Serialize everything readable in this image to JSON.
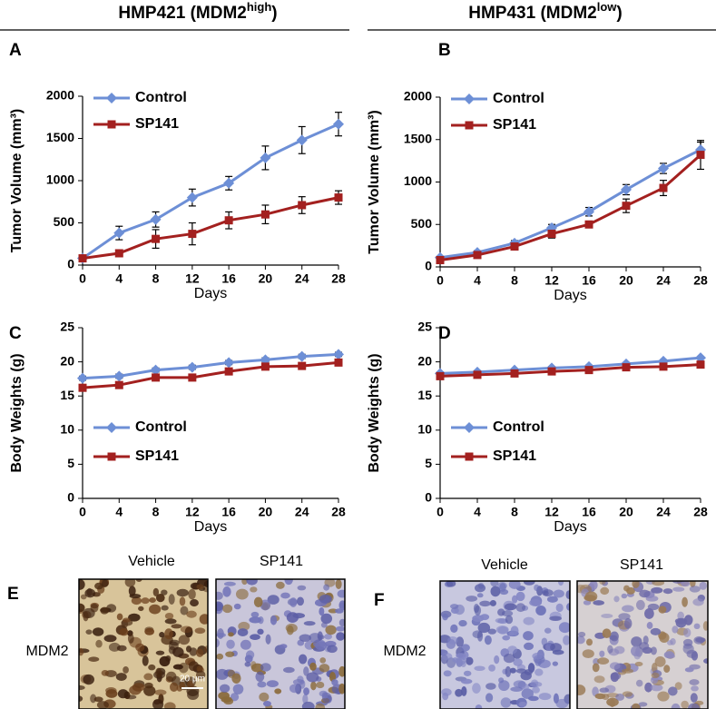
{
  "headers": [
    {
      "text": "HMP421 (MDM2",
      "sup": "high",
      "end": ")"
    },
    {
      "text": "HMP431 (MDM2",
      "sup": "low",
      "end": ")"
    }
  ],
  "chart_data": [
    {
      "type": "line",
      "panel": "A",
      "xlabel": "Days",
      "ylabel": "Tumor Volume (mm³)",
      "x": [
        0,
        4,
        8,
        12,
        16,
        20,
        24,
        28
      ],
      "xlim": [
        0,
        28
      ],
      "xticks": [
        0,
        4,
        8,
        12,
        16,
        20,
        24,
        28
      ],
      "ylim": [
        0,
        2000
      ],
      "yticks": [
        0,
        500,
        1000,
        1500,
        2000
      ],
      "legend_position": "upper left",
      "series": [
        {
          "name": "Control",
          "color": "#6d8fd6",
          "marker": "diamond",
          "values": [
            80,
            380,
            540,
            800,
            970,
            1270,
            1480,
            1670
          ],
          "errors": [
            0,
            80,
            90,
            100,
            80,
            140,
            160,
            140
          ]
        },
        {
          "name": "SP141",
          "color": "#a3201f",
          "marker": "square",
          "values": [
            80,
            140,
            310,
            370,
            530,
            600,
            710,
            800
          ],
          "errors": [
            0,
            40,
            110,
            130,
            100,
            110,
            100,
            80
          ]
        }
      ]
    },
    {
      "type": "line",
      "panel": "B",
      "xlabel": "Days",
      "ylabel": "Tumor Volume (mm³)",
      "x": [
        0,
        4,
        8,
        12,
        16,
        20,
        24,
        28
      ],
      "xlim": [
        0,
        28
      ],
      "xticks": [
        0,
        4,
        8,
        12,
        16,
        20,
        24,
        28
      ],
      "ylim": [
        0,
        2000
      ],
      "yticks": [
        0,
        500,
        1000,
        1500,
        2000
      ],
      "legend_position": "upper left",
      "series": [
        {
          "name": "Control",
          "color": "#6d8fd6",
          "marker": "diamond",
          "values": [
            110,
            170,
            280,
            460,
            650,
            910,
            1160,
            1380
          ],
          "errors": [
            0,
            20,
            30,
            40,
            50,
            60,
            60,
            90
          ]
        },
        {
          "name": "SP141",
          "color": "#a3201f",
          "marker": "square",
          "values": [
            80,
            140,
            240,
            390,
            500,
            720,
            930,
            1320
          ],
          "errors": [
            0,
            20,
            40,
            50,
            30,
            80,
            90,
            170
          ]
        }
      ]
    },
    {
      "type": "line",
      "panel": "C",
      "xlabel": "Days",
      "ylabel": "Body Weights (g)",
      "x": [
        0,
        4,
        8,
        12,
        16,
        20,
        24,
        28
      ],
      "xlim": [
        0,
        28
      ],
      "xticks": [
        0,
        4,
        8,
        12,
        16,
        20,
        24,
        28
      ],
      "ylim": [
        0,
        25
      ],
      "yticks": [
        0,
        5,
        10,
        15,
        20,
        25
      ],
      "legend_position": "lower left",
      "series": [
        {
          "name": "Control",
          "color": "#6d8fd6",
          "marker": "diamond",
          "values": [
            17.6,
            17.9,
            18.8,
            19.2,
            19.9,
            20.3,
            20.8,
            21.1
          ],
          "errors": [
            0.3,
            0.3,
            0.3,
            0.3,
            0.3,
            0.3,
            0.3,
            0.3
          ]
        },
        {
          "name": "SP141",
          "color": "#a3201f",
          "marker": "square",
          "values": [
            16.2,
            16.6,
            17.7,
            17.7,
            18.6,
            19.3,
            19.4,
            19.9
          ],
          "errors": [
            0.2,
            0.2,
            0.2,
            0.2,
            0.2,
            0.2,
            0.2,
            0.2
          ]
        }
      ]
    },
    {
      "type": "line",
      "panel": "D",
      "xlabel": "Days",
      "ylabel": "Body Weights (g)",
      "x": [
        0,
        4,
        8,
        12,
        16,
        20,
        24,
        28
      ],
      "xlim": [
        0,
        28
      ],
      "xticks": [
        0,
        4,
        8,
        12,
        16,
        20,
        24,
        28
      ],
      "ylim": [
        0,
        25
      ],
      "yticks": [
        0,
        5,
        10,
        15,
        20,
        25
      ],
      "legend_position": "lower left",
      "series": [
        {
          "name": "Control",
          "color": "#6d8fd6",
          "marker": "diamond",
          "values": [
            18.3,
            18.5,
            18.8,
            19.1,
            19.3,
            19.7,
            20.1,
            20.6
          ],
          "errors": [
            0.2,
            0.2,
            0.2,
            0.2,
            0.2,
            0.2,
            0.2,
            0.2
          ]
        },
        {
          "name": "SP141",
          "color": "#a3201f",
          "marker": "square",
          "values": [
            17.9,
            18.1,
            18.3,
            18.6,
            18.8,
            19.2,
            19.3,
            19.6
          ],
          "errors": [
            0.2,
            0.2,
            0.2,
            0.2,
            0.2,
            0.2,
            0.2,
            0.2
          ]
        }
      ]
    }
  ],
  "images": [
    {
      "panel": "E",
      "row_label": "MDM2",
      "columns": [
        "Vehicle",
        "SP141"
      ],
      "scale_bar": "20 µm"
    },
    {
      "panel": "F",
      "row_label": "MDM2",
      "columns": [
        "Vehicle",
        "SP141"
      ]
    }
  ]
}
